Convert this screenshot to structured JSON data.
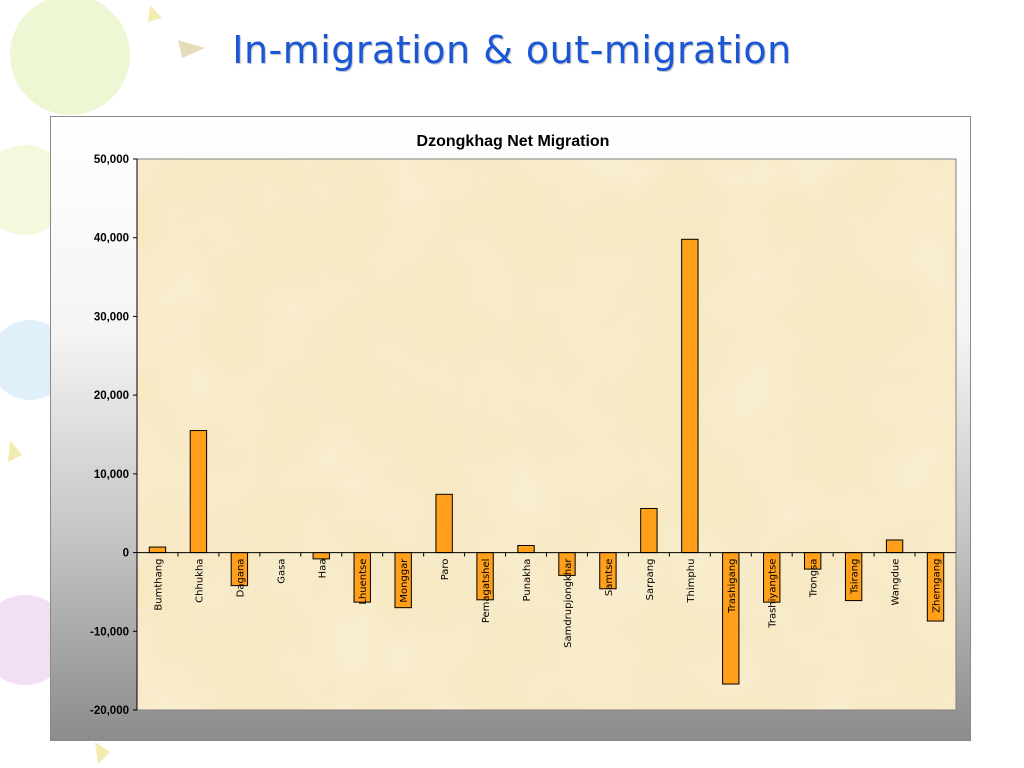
{
  "slide": {
    "title": "In-migration & out-migration"
  },
  "colors": {
    "title": "#1a56d6",
    "bar_fill": "#ff9f1a",
    "bar_stroke": "#000000",
    "plot_background": "#f7e9c4"
  },
  "chart_data": {
    "type": "bar",
    "title": "Dzongkhag Net Migration",
    "xlabel": "",
    "ylabel": "",
    "ylim": [
      -20000,
      50000
    ],
    "yticks": [
      50000,
      40000,
      30000,
      20000,
      10000,
      0,
      -10000,
      -20000
    ],
    "ytick_labels": [
      "50,000",
      "40,000",
      "30,000",
      "20,000",
      "10,000",
      "0",
      "-10,000",
      "-20,000"
    ],
    "grid": false,
    "legend": "none",
    "categories": [
      "Bumthang",
      "Chhukha",
      "Dagana",
      "Gasa",
      "Haa",
      "Lhuentse",
      "Monggar",
      "Paro",
      "Pemagatshel",
      "Punakha",
      "Samdrupjongkhar",
      "Samtse",
      "Sarpang",
      "Thimphu",
      "Trashigang",
      "Trashiyangtse",
      "Trongsa",
      "Tsirang",
      "Wangdue",
      "Zhemgang"
    ],
    "values": [
      700,
      15500,
      -4200,
      0,
      -800,
      -6300,
      -7000,
      7400,
      -6000,
      900,
      -2900,
      -4600,
      5600,
      39800,
      -16700,
      -6300,
      -2100,
      -6100,
      1600,
      -8700
    ]
  }
}
